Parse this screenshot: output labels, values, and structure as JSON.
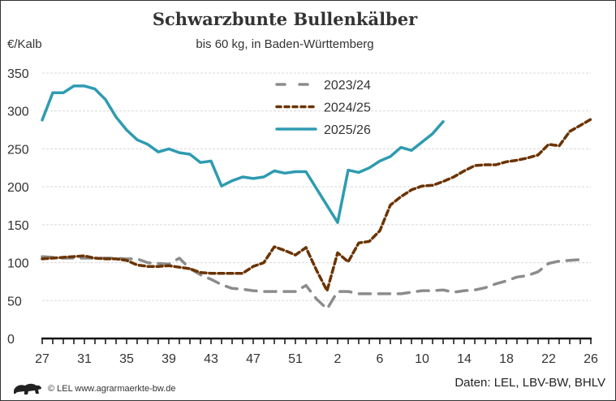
{
  "chart_data": {
    "type": "line",
    "title": "Schwarzbunte Bullenkälber",
    "subtitle": "bis 60 kg, in Baden-Württemberg",
    "ylabel": "€/Kalb",
    "xlabel": "",
    "ylim": [
      0,
      350
    ],
    "yticks": [
      0,
      50,
      100,
      150,
      200,
      250,
      300,
      350
    ],
    "x": [
      27,
      28,
      29,
      30,
      31,
      32,
      33,
      34,
      35,
      36,
      37,
      38,
      39,
      40,
      41,
      42,
      43,
      44,
      45,
      46,
      47,
      48,
      49,
      50,
      51,
      52,
      53,
      1,
      2,
      3,
      4,
      5,
      6,
      7,
      8,
      9,
      10,
      11,
      12,
      13,
      14,
      15,
      16,
      17,
      18,
      19,
      20,
      21,
      22,
      23,
      24,
      25,
      26
    ],
    "xtick_labels": [
      "27",
      "31",
      "35",
      "39",
      "43",
      "47",
      "51",
      "2",
      "6",
      "10",
      "14",
      "18",
      "22",
      "26"
    ],
    "grid": "horizontal dashed",
    "legend_position": "top-center",
    "series": [
      {
        "name": "2023/24",
        "color": "#8c8c8c",
        "style": "dashed",
        "values": [
          108,
          107,
          106,
          106,
          106,
          106,
          106,
          106,
          105,
          105,
          100,
          99,
          98,
          106,
          92,
          84,
          78,
          71,
          66,
          65,
          63,
          62,
          62,
          62,
          62,
          70,
          52,
          39,
          62,
          62,
          59,
          59,
          59,
          59,
          59,
          61,
          63,
          63,
          64,
          61,
          63,
          64,
          67,
          72,
          76,
          81,
          83,
          88,
          99,
          102,
          103,
          104,
          null
        ]
      },
      {
        "name": "2024/25",
        "color": "#6b3300",
        "style": "dotted",
        "values": [
          105,
          106,
          107,
          108,
          109,
          106,
          105,
          105,
          103,
          97,
          95,
          95,
          96,
          94,
          92,
          87,
          86,
          86,
          86,
          86,
          95,
          100,
          121,
          116,
          110,
          120,
          90,
          63,
          113,
          101,
          126,
          128,
          142,
          176,
          187,
          196,
          201,
          202,
          207,
          213,
          221,
          228,
          229,
          229,
          233,
          235,
          238,
          242,
          256,
          254,
          273,
          281,
          289
        ]
      },
      {
        "name": "2025/26",
        "color": "#2e9bb0",
        "style": "solid",
        "values": [
          288,
          324,
          324,
          333,
          333,
          329,
          315,
          292,
          275,
          262,
          256,
          246,
          250,
          245,
          243,
          232,
          234,
          201,
          208,
          213,
          211,
          213,
          221,
          218,
          220,
          220,
          null,
          null,
          153,
          222,
          219,
          225,
          234,
          240,
          252,
          248,
          259,
          270,
          286,
          null,
          null,
          null,
          null,
          null,
          null,
          null,
          null,
          null,
          null,
          null,
          null,
          null,
          null
        ]
      }
    ]
  },
  "footer": {
    "copyright": "© LEL www.agrarmaerkte-bw.de",
    "source": "Daten: LEL, LBV-BW, BHLV",
    "logo": "Baden-Württemberg lion logo"
  }
}
